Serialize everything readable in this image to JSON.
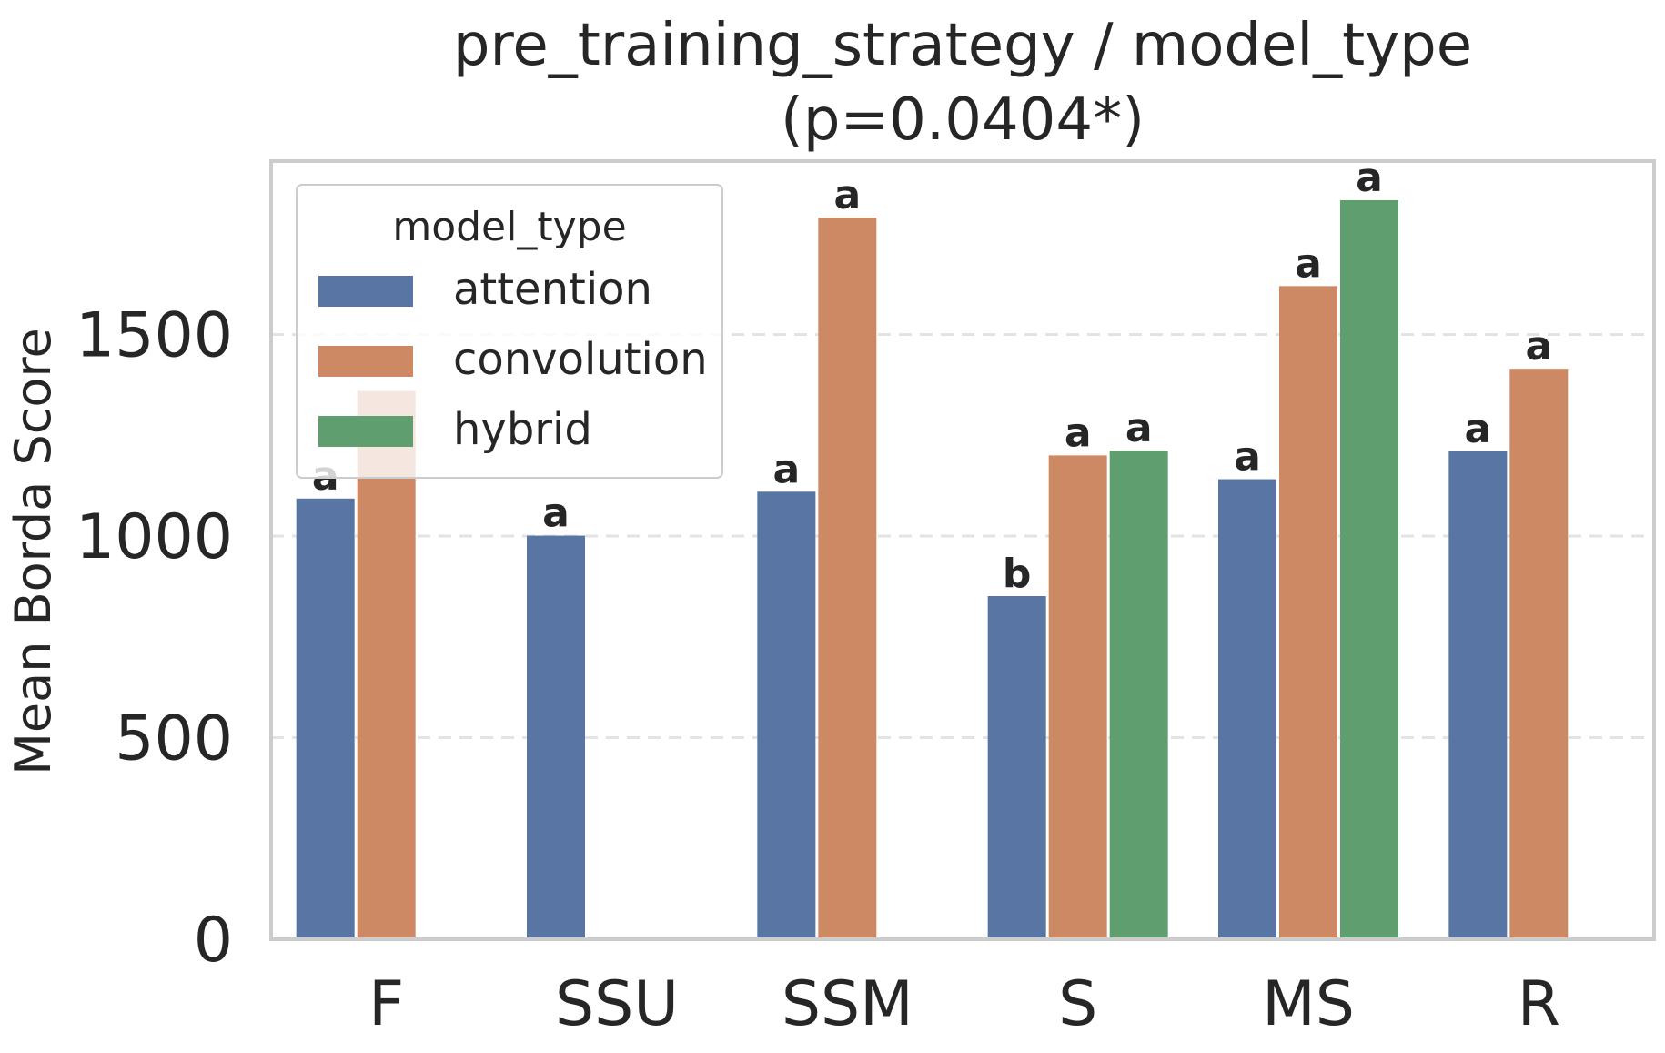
{
  "chart_data": {
    "type": "bar",
    "title_line1": "pre_training_strategy / model_type",
    "title_line2": "(p=0.0404*)",
    "xlabel": "",
    "ylabel": "Mean Borda Score",
    "ylim": [
      0,
      1930
    ],
    "yticks": [
      0,
      500,
      1000,
      1500
    ],
    "grid": "horizontal dashed",
    "categories": [
      "F",
      "SSU",
      "SSM",
      "S",
      "MS",
      "R"
    ],
    "series": [
      {
        "name": "attention",
        "color": "#5975a4",
        "values": [
          1093,
          1001,
          1110,
          851,
          1141,
          1210
        ]
      },
      {
        "name": "convolution",
        "color": "#cc8963",
        "values": [
          1360,
          null,
          1790,
          1200,
          1620,
          1415
        ]
      },
      {
        "name": "hybrid",
        "color": "#5f9e6e",
        "values": [
          null,
          null,
          null,
          1212,
          1833,
          null
        ]
      }
    ],
    "letters": [
      [
        "a",
        "a",
        "a",
        "b",
        "a",
        "a"
      ],
      [
        "",
        "",
        "a",
        "a",
        "a",
        "a"
      ],
      [
        "",
        "",
        "",
        "a",
        "a",
        ""
      ]
    ],
    "legend": {
      "title": "model_type",
      "placement": "upper-left"
    }
  }
}
